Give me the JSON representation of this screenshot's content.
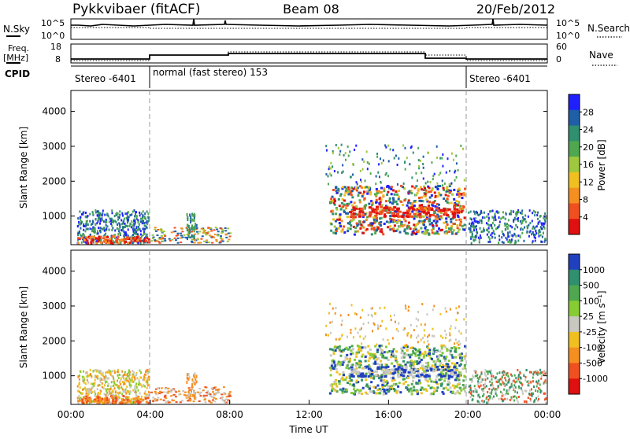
{
  "header": {
    "station": "Pykkvibaer (fitACF)",
    "beam": "Beam 08",
    "date": "20/Feb/2012"
  },
  "strips": {
    "nsky_label": "N.Sky",
    "nsky_ticks": [
      "10^5",
      "10^0"
    ],
    "nsearch_label": "N.Search",
    "freq_label_1": "Freq.",
    "freq_label_2": "[MHz]",
    "freq_ticks": [
      "18",
      "8"
    ],
    "nave_label": "Nave",
    "nave_ticks": [
      "60",
      "0"
    ],
    "cpid_label": "CPID",
    "cpid_segments": [
      "Stereo -6401",
      "normal (fast stereo) 153",
      "Stereo -6401"
    ]
  },
  "chart_data": [
    {
      "type": "heatmap",
      "panel": "power",
      "ylabel": "Slant Range [km]",
      "xlabel": "",
      "yticks": [
        "1000",
        "2000",
        "3000",
        "4000"
      ],
      "ylim": [
        180,
        4600
      ],
      "colorbar_label": "Power [dB]",
      "colorbar_ticks": [
        "28",
        "24",
        "20",
        "16",
        "12",
        "8",
        "4"
      ],
      "colors": [
        "#2020ff",
        "#1f5fa8",
        "#2f8f6f",
        "#4fa84f",
        "#9fc83f",
        "#f0c020",
        "#f59020",
        "#f05020",
        "#e01010"
      ]
    },
    {
      "type": "heatmap",
      "panel": "velocity",
      "ylabel": "Slant Range [km]",
      "xlabel": "Time UT",
      "yticks": [
        "1000",
        "2000",
        "3000",
        "4000"
      ],
      "ylim": [
        180,
        4600
      ],
      "xticks": [
        "00:00",
        "04:00",
        "08:00",
        "12:00",
        "16:00",
        "20:00",
        "00:00"
      ],
      "colorbar_label": "Velocity [m s⁻¹]",
      "colorbar_ticks": [
        "1000",
        "500",
        "100",
        "25",
        "-25",
        "-100",
        "-500",
        "-1000"
      ],
      "colors": [
        "#2040c0",
        "#2f8f6f",
        "#4fa84f",
        "#88cc33",
        "#c8c8c0",
        "#f0c020",
        "#f59020",
        "#f05020",
        "#e01010"
      ]
    }
  ]
}
